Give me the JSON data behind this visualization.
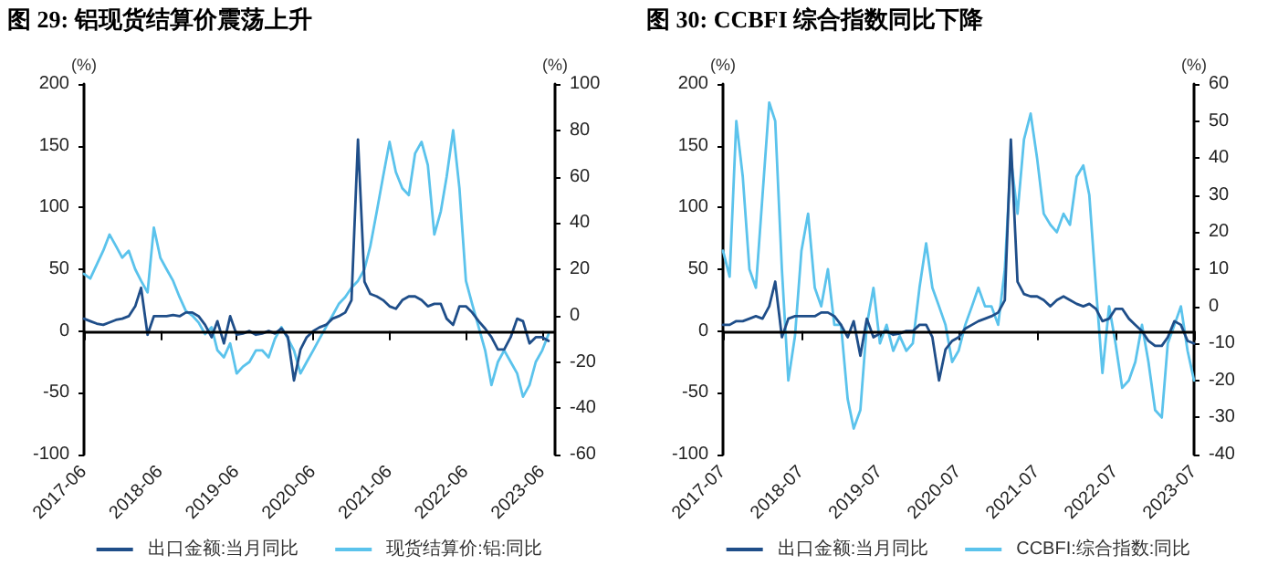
{
  "chart_data": [
    {
      "type": "line",
      "title": "图 29: 铝现货结算价震荡上升",
      "ylabel": "(%)",
      "y2label": "(%)",
      "x": [
        "2017-06",
        "2017-07",
        "2017-08",
        "2017-09",
        "2017-10",
        "2017-11",
        "2017-12",
        "2018-01",
        "2018-02",
        "2018-03",
        "2018-04",
        "2018-05",
        "2018-06",
        "2018-07",
        "2018-08",
        "2018-09",
        "2018-10",
        "2018-11",
        "2018-12",
        "2019-01",
        "2019-02",
        "2019-03",
        "2019-04",
        "2019-05",
        "2019-06",
        "2019-07",
        "2019-08",
        "2019-09",
        "2019-10",
        "2019-11",
        "2019-12",
        "2020-01",
        "2020-02",
        "2020-03",
        "2020-04",
        "2020-05",
        "2020-06",
        "2020-07",
        "2020-08",
        "2020-09",
        "2020-10",
        "2020-11",
        "2020-12",
        "2021-01",
        "2021-02",
        "2021-03",
        "2021-04",
        "2021-05",
        "2021-06",
        "2021-07",
        "2021-08",
        "2021-09",
        "2021-10",
        "2021-11",
        "2021-12",
        "2022-01",
        "2022-02",
        "2022-03",
        "2022-04",
        "2022-05",
        "2022-06",
        "2022-07",
        "2022-08",
        "2022-09",
        "2022-10",
        "2022-11",
        "2022-12",
        "2023-01",
        "2023-02",
        "2023-03",
        "2023-04",
        "2023-05",
        "2023-06",
        "2023-07"
      ],
      "series": [
        {
          "name": "出口金额:当月同比",
          "color": "#1f4e89",
          "values": [
            10,
            8,
            6,
            5,
            7,
            9,
            10,
            12,
            20,
            35,
            -3,
            12,
            12,
            12,
            13,
            12,
            15,
            15,
            12,
            5,
            -5,
            8,
            -10,
            12,
            -3,
            -2,
            0,
            -3,
            -2,
            0,
            -2,
            2,
            -5,
            -40,
            -15,
            -5,
            0,
            3,
            5,
            10,
            12,
            15,
            25,
            155,
            40,
            30,
            28,
            25,
            20,
            18,
            25,
            28,
            28,
            25,
            20,
            22,
            22,
            10,
            5,
            20,
            20,
            15,
            8,
            2,
            -5,
            -15,
            -15,
            -5,
            10,
            8,
            -10,
            -5,
            -5,
            -8
          ]
        },
        {
          "name": "现货结算价:铝:同比",
          "color": "#5bc3ec",
          "axis": "y2",
          "values": [
            18,
            16,
            22,
            28,
            35,
            30,
            25,
            28,
            20,
            15,
            10,
            38,
            25,
            20,
            15,
            8,
            2,
            0,
            -3,
            -8,
            -5,
            -15,
            -18,
            -12,
            -25,
            -22,
            -20,
            -15,
            -15,
            -18,
            -10,
            -5,
            -10,
            -15,
            -25,
            -20,
            -15,
            -10,
            -5,
            0,
            5,
            8,
            12,
            15,
            20,
            30,
            45,
            60,
            75,
            62,
            55,
            52,
            70,
            75,
            65,
            35,
            45,
            60,
            80,
            55,
            15,
            5,
            -5,
            -15,
            -30,
            -20,
            -15,
            -20,
            -25,
            -35,
            -30,
            -20,
            -15,
            -8
          ]
        }
      ],
      "xlim": [
        "2017-06",
        "2023-08"
      ],
      "xticks": [
        "2017-06",
        "2018-06",
        "2019-06",
        "2020-06",
        "2021-06",
        "2022-06",
        "2023-06"
      ],
      "ylim": [
        -100,
        200
      ],
      "yticks": [
        -100,
        -50,
        0,
        50,
        100,
        150,
        200
      ],
      "y2lim": [
        -60,
        100
      ],
      "y2ticks": [
        -60,
        -40,
        -20,
        0,
        20,
        40,
        60,
        80,
        100
      ],
      "ref_lines": [
        {
          "axis": "y",
          "value": 0,
          "color": "#000000"
        }
      ],
      "grid": false,
      "legend": "bottom",
      "marker": "none",
      "line_style": "solid"
    },
    {
      "type": "line",
      "title": "图 30: CCBFI 综合指数同比下降",
      "ylabel": "(%)",
      "y2label": "(%)",
      "x": [
        "2017-07",
        "2017-08",
        "2017-09",
        "2017-10",
        "2017-11",
        "2017-12",
        "2018-01",
        "2018-02",
        "2018-03",
        "2018-04",
        "2018-05",
        "2018-06",
        "2018-07",
        "2018-08",
        "2018-09",
        "2018-10",
        "2018-11",
        "2018-12",
        "2019-01",
        "2019-02",
        "2019-03",
        "2019-04",
        "2019-05",
        "2019-06",
        "2019-07",
        "2019-08",
        "2019-09",
        "2019-10",
        "2019-11",
        "2019-12",
        "2020-01",
        "2020-02",
        "2020-03",
        "2020-04",
        "2020-05",
        "2020-06",
        "2020-07",
        "2020-08",
        "2020-09",
        "2020-10",
        "2020-11",
        "2020-12",
        "2021-01",
        "2021-02",
        "2021-03",
        "2021-04",
        "2021-05",
        "2021-06",
        "2021-07",
        "2021-08",
        "2021-09",
        "2021-10",
        "2021-11",
        "2021-12",
        "2022-01",
        "2022-02",
        "2022-03",
        "2022-04",
        "2022-05",
        "2022-06",
        "2022-07",
        "2022-08",
        "2022-09",
        "2022-10",
        "2022-11",
        "2022-12",
        "2023-01",
        "2023-02",
        "2023-03",
        "2023-04",
        "2023-05",
        "2023-06",
        "2023-07"
      ],
      "series": [
        {
          "name": "出口金额:当月同比",
          "color": "#1f4e89",
          "values": [
            5,
            5,
            8,
            8,
            10,
            12,
            10,
            20,
            40,
            -5,
            10,
            12,
            12,
            12,
            12,
            15,
            15,
            12,
            5,
            -5,
            8,
            -20,
            10,
            -5,
            -2,
            0,
            -3,
            -2,
            0,
            0,
            5,
            5,
            -5,
            -40,
            -15,
            -8,
            -5,
            2,
            5,
            8,
            10,
            12,
            15,
            25,
            155,
            40,
            30,
            28,
            28,
            25,
            20,
            25,
            28,
            25,
            22,
            20,
            22,
            18,
            8,
            10,
            18,
            18,
            10,
            5,
            0,
            -8,
            -12,
            -12,
            -5,
            8,
            5,
            -8,
            -10
          ]
        },
        {
          "name": "CCBFI:综合指数:同比",
          "color": "#5bc3ec",
          "axis": "y2",
          "values": [
            15,
            8,
            50,
            35,
            10,
            5,
            30,
            55,
            50,
            10,
            -20,
            -8,
            15,
            25,
            5,
            0,
            10,
            -5,
            -5,
            -25,
            -33,
            -28,
            -5,
            5,
            -10,
            -5,
            -12,
            -8,
            -12,
            -10,
            5,
            17,
            5,
            0,
            -5,
            -15,
            -12,
            -5,
            0,
            5,
            0,
            0,
            -5,
            10,
            40,
            25,
            45,
            52,
            40,
            25,
            22,
            20,
            25,
            22,
            35,
            38,
            30,
            5,
            -18,
            0,
            -10,
            -22,
            -20,
            -15,
            -5,
            -15,
            -28,
            -30,
            -10,
            -5,
            0,
            -12,
            -20
          ]
        }
      ],
      "xlim": [
        "2017-07",
        "2023-07"
      ],
      "xticks": [
        "2017-07",
        "2018-07",
        "2019-07",
        "2020-07",
        "2021-07",
        "2022-07",
        "2023-07"
      ],
      "ylim": [
        -100,
        200
      ],
      "yticks": [
        -100,
        -50,
        0,
        50,
        100,
        150,
        200
      ],
      "y2lim": [
        -40,
        60
      ],
      "y2ticks": [
        -40,
        -30,
        -20,
        -10,
        0,
        10,
        20,
        30,
        40,
        50,
        60
      ],
      "ref_lines": [
        {
          "axis": "y",
          "value": 0,
          "color": "#000000"
        }
      ],
      "grid": false,
      "legend": "bottom",
      "marker": "none",
      "line_style": "solid"
    }
  ]
}
